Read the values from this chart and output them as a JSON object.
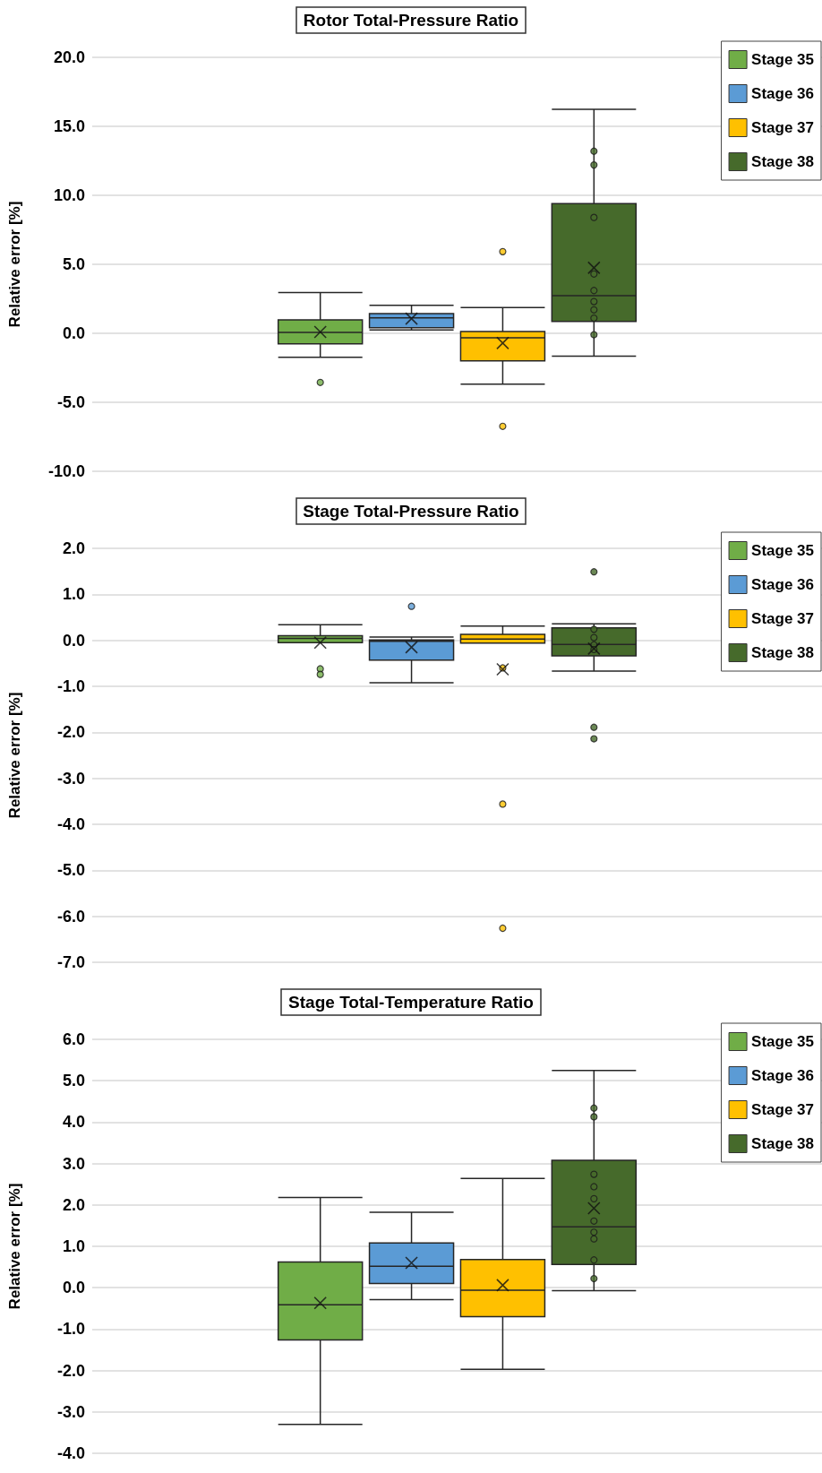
{
  "chart_data": [
    {
      "type": "box",
      "title": "Rotor Total-Pressure Ratio",
      "ylabel": "Relative error [%]",
      "categories": [
        null
      ],
      "grid": "y",
      "legend": "top right",
      "ylim": [
        -10,
        20
      ],
      "yticks": [
        {
          "value": -10,
          "label": "-10.0"
        },
        {
          "value": -5,
          "label": "-5.0"
        },
        {
          "value": 0,
          "label": "0.0"
        },
        {
          "value": 5,
          "label": "5.0"
        },
        {
          "value": 10,
          "label": "10.0"
        },
        {
          "value": 15,
          "label": "15.0"
        },
        {
          "value": 20,
          "label": "20.0"
        }
      ],
      "series": [
        {
          "name": "Stage 35",
          "color": "#70ad47",
          "boxes": [
            {
              "low": -1.73,
              "q1": -0.76,
              "median": 0.06,
              "q3": 0.97,
              "high": 2.96,
              "mean": 0.1,
              "outliers": [
                -3.56
              ]
            }
          ]
        },
        {
          "name": "Stage 36",
          "color": "#5b9bd5",
          "boxes": [
            {
              "low": 0.24,
              "q1": 0.41,
              "median": 1.12,
              "q3": 1.43,
              "high": 2.03,
              "mean": 1.06
            }
          ]
        },
        {
          "name": "Stage 37",
          "color": "#ffc000",
          "boxes": [
            {
              "low": -3.69,
              "q1": -1.99,
              "median": -0.32,
              "q3": 0.13,
              "high": 1.86,
              "mean": -0.71,
              "outliers": [
                5.92,
                -6.74
              ]
            }
          ]
        },
        {
          "name": "Stage 38",
          "color": "#466a2b",
          "boxes": [
            {
              "low": -1.66,
              "q1": 0.86,
              "median": 2.72,
              "q3": 9.4,
              "high": 16.24,
              "mean": 4.75,
              "outliers": [
                13.2,
                12.2,
                8.4,
                4.3,
                3.1,
                2.3,
                1.7,
                1.1,
                -0.1
              ]
            }
          ]
        }
      ]
    },
    {
      "type": "box",
      "title": "Stage Total-Pressure Ratio",
      "ylabel": "Relative error [%]",
      "categories": [
        null
      ],
      "grid": "y",
      "legend": "top right",
      "ylim": [
        -7,
        2
      ],
      "yticks": [
        {
          "value": -7,
          "label": "-7.0"
        },
        {
          "value": -6,
          "label": "-6.0"
        },
        {
          "value": -5,
          "label": "-5.0"
        },
        {
          "value": -4,
          "label": "-4.0"
        },
        {
          "value": -3,
          "label": "-3.0"
        },
        {
          "value": -2,
          "label": "-2.0"
        },
        {
          "value": -1,
          "label": "-1.0"
        },
        {
          "value": 0,
          "label": "0.0"
        },
        {
          "value": 1,
          "label": "1.0"
        },
        {
          "value": 2,
          "label": "2.0"
        }
      ],
      "series": [
        {
          "name": "Stage 35",
          "color": "#70ad47",
          "boxes": [
            {
              "low": -0.05,
              "q1": -0.05,
              "median": 0.04,
              "q3": 0.1,
              "high": 0.34,
              "mean": -0.05,
              "outliers": [
                -0.62,
                -0.74
              ]
            }
          ]
        },
        {
          "name": "Stage 36",
          "color": "#5b9bd5",
          "boxes": [
            {
              "low": -0.92,
              "q1": -0.43,
              "median": -0.02,
              "q3": 0.01,
              "high": 0.07,
              "mean": -0.15,
              "outliers": [
                0.74
              ]
            }
          ]
        },
        {
          "name": "Stage 37",
          "color": "#ffc000",
          "boxes": [
            {
              "low": -0.06,
              "q1": -0.06,
              "median": 0.03,
              "q3": 0.13,
              "high": 0.31,
              "mean": -0.63,
              "outliers": [
                -0.6,
                -3.56,
                -6.26
              ]
            }
          ]
        },
        {
          "name": "Stage 38",
          "color": "#466a2b",
          "boxes": [
            {
              "low": -0.67,
              "q1": -0.34,
              "median": -0.09,
              "q3": 0.27,
              "high": 0.36,
              "mean": -0.18,
              "outliers": [
                1.49,
                0.24,
                0.06,
                -0.1,
                -0.2,
                -1.89,
                -2.14
              ]
            }
          ]
        }
      ]
    },
    {
      "type": "box",
      "title": "Stage Total-Temperature Ratio",
      "ylabel": "Relative error [%]",
      "categories": [
        null
      ],
      "grid": "y",
      "legend": "top right",
      "ylim": [
        -4,
        6
      ],
      "yticks": [
        {
          "value": -4,
          "label": "-4.0"
        },
        {
          "value": -3,
          "label": "-3.0"
        },
        {
          "value": -2,
          "label": "-2.0"
        },
        {
          "value": -1,
          "label": "-1.0"
        },
        {
          "value": 0,
          "label": "0.0"
        },
        {
          "value": 1,
          "label": "1.0"
        },
        {
          "value": 2,
          "label": "2.0"
        },
        {
          "value": 3,
          "label": "3.0"
        },
        {
          "value": 4,
          "label": "4.0"
        },
        {
          "value": 5,
          "label": "5.0"
        },
        {
          "value": 6,
          "label": "6.0"
        }
      ],
      "series": [
        {
          "name": "Stage 35",
          "color": "#70ad47",
          "boxes": [
            {
              "low": -3.3,
              "q1": -1.26,
              "median": -0.41,
              "q3": 0.62,
              "high": 2.18,
              "mean": -0.37
            }
          ]
        },
        {
          "name": "Stage 36",
          "color": "#5b9bd5",
          "boxes": [
            {
              "low": -0.29,
              "q1": 0.1,
              "median": 0.52,
              "q3": 1.08,
              "high": 1.82,
              "mean": 0.6
            }
          ]
        },
        {
          "name": "Stage 37",
          "color": "#ffc000",
          "boxes": [
            {
              "low": -1.97,
              "q1": -0.7,
              "median": -0.06,
              "q3": 0.68,
              "high": 2.64,
              "mean": 0.06
            }
          ]
        },
        {
          "name": "Stage 38",
          "color": "#466a2b",
          "boxes": [
            {
              "low": -0.07,
              "q1": 0.56,
              "median": 1.47,
              "q3": 3.08,
              "high": 5.25,
              "mean": 1.92,
              "outliers": [
                4.34,
                4.13,
                2.74,
                2.44,
                2.15,
                1.61,
                1.34,
                1.18,
                0.67,
                0.22
              ]
            }
          ]
        }
      ]
    }
  ]
}
